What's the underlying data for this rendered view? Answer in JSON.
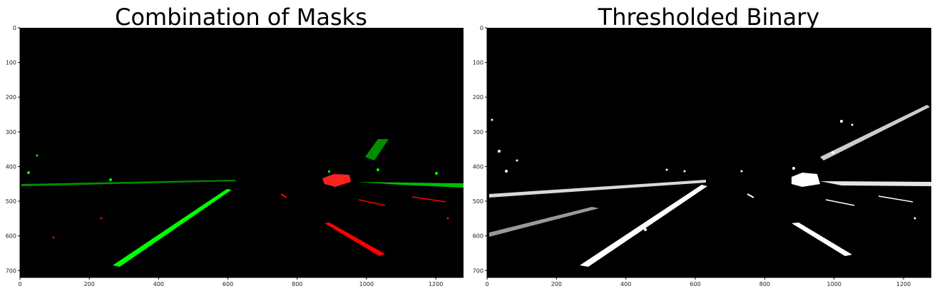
{
  "panels": [
    {
      "title": "Combination of Masks",
      "x_ticks": [
        "0",
        "200",
        "400",
        "600",
        "800",
        "1000",
        "1200"
      ],
      "y_ticks": [
        "0",
        "100",
        "200",
        "300",
        "400",
        "500",
        "600",
        "700"
      ],
      "colors": {
        "background": "#000000",
        "mask_a": "#00ff00",
        "mask_b": "#ff0000"
      }
    },
    {
      "title": "Thresholded Binary",
      "x_ticks": [
        "0",
        "200",
        "400",
        "600",
        "800",
        "1000",
        "1200"
      ],
      "y_ticks": [
        "0",
        "100",
        "200",
        "300",
        "400",
        "500",
        "600",
        "700"
      ],
      "colors": {
        "background": "#000000",
        "foreground": "#ffffff"
      }
    }
  ]
}
